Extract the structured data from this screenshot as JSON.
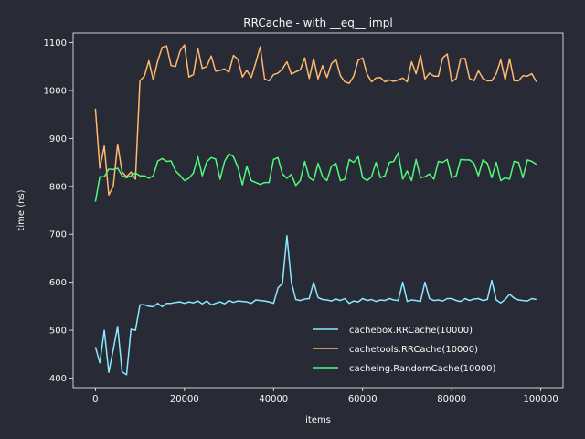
{
  "chart_data": {
    "type": "line",
    "title": "RRCache - with __eq__ impl",
    "xlabel": "items",
    "ylabel": "time (ns)",
    "xlim": [
      -5000,
      105000
    ],
    "ylim": [
      380,
      1120
    ],
    "xticks": [
      0,
      20000,
      40000,
      60000,
      80000,
      100000
    ],
    "yticks": [
      400,
      500,
      600,
      700,
      800,
      900,
      1000,
      1100
    ],
    "legend_position": "lower right",
    "grid": false,
    "colors": {
      "background": "#282a36",
      "axis": "#f8f8f2"
    },
    "x": [
      0,
      1000,
      2000,
      3000,
      4000,
      5000,
      6000,
      7000,
      8000,
      9000,
      10000,
      11000,
      12000,
      13000,
      14000,
      15000,
      16000,
      17000,
      18000,
      19000,
      20000,
      21000,
      22000,
      23000,
      24000,
      25000,
      26000,
      27000,
      28000,
      29000,
      30000,
      31000,
      32000,
      33000,
      34000,
      35000,
      36000,
      37000,
      38000,
      39000,
      40000,
      41000,
      42000,
      43000,
      44000,
      45000,
      46000,
      47000,
      48000,
      49000,
      50000,
      51000,
      52000,
      53000,
      54000,
      55000,
      56000,
      57000,
      58000,
      59000,
      60000,
      61000,
      62000,
      63000,
      64000,
      65000,
      66000,
      67000,
      68000,
      69000,
      70000,
      71000,
      72000,
      73000,
      74000,
      75000,
      76000,
      77000,
      78000,
      79000,
      80000,
      81000,
      82000,
      83000,
      84000,
      85000,
      86000,
      87000,
      88000,
      89000,
      90000,
      91000,
      92000,
      93000,
      94000,
      95000,
      96000,
      97000,
      98000,
      99000
    ],
    "series": [
      {
        "name": "cachebox.RRCache(10000)",
        "color": "#8be9fd",
        "values": [
          465,
          432,
          500,
          412,
          460,
          508,
          413,
          407,
          502,
          500,
          553,
          553,
          550,
          549,
          556,
          549,
          556,
          556,
          558,
          559,
          556,
          559,
          557,
          561,
          555,
          561,
          553,
          556,
          559,
          555,
          562,
          558,
          561,
          560,
          559,
          556,
          563,
          562,
          561,
          559,
          556,
          588,
          598,
          697,
          600,
          564,
          562,
          565,
          566,
          600,
          568,
          564,
          563,
          561,
          565,
          562,
          566,
          556,
          561,
          559,
          566,
          562,
          564,
          560,
          563,
          562,
          566,
          563,
          562,
          600,
          560,
          563,
          562,
          560,
          600,
          566,
          562,
          563,
          561,
          566,
          566,
          562,
          560,
          566,
          562,
          565,
          566,
          562,
          564,
          604,
          563,
          557,
          564,
          575,
          567,
          563,
          562,
          561,
          566,
          564
        ]
      },
      {
        "name": "cachetools.RRCache(10000)",
        "color": "#ffb86c",
        "values": [
          962,
          838,
          884,
          782,
          800,
          888,
          830,
          820,
          830,
          815,
          1020,
          1030,
          1062,
          1022,
          1062,
          1090,
          1093,
          1052,
          1050,
          1082,
          1095,
          1028,
          1033,
          1088,
          1046,
          1050,
          1072,
          1040,
          1042,
          1045,
          1038,
          1073,
          1065,
          1028,
          1042,
          1027,
          1058,
          1091,
          1024,
          1020,
          1033,
          1036,
          1045,
          1060,
          1034,
          1039,
          1043,
          1068,
          1025,
          1066,
          1024,
          1052,
          1027,
          1056,
          1065,
          1031,
          1018,
          1015,
          1030,
          1063,
          1068,
          1034,
          1018,
          1026,
          1027,
          1018,
          1022,
          1019,
          1022,
          1026,
          1018,
          1060,
          1035,
          1073,
          1024,
          1036,
          1030,
          1030,
          1068,
          1076,
          1018,
          1025,
          1066,
          1067,
          1025,
          1020,
          1041,
          1025,
          1020,
          1020,
          1035,
          1064,
          1022,
          1066,
          1020,
          1020,
          1031,
          1030,
          1035,
          1018
        ]
      },
      {
        "name": "cacheing.RandomCache(10000)",
        "color": "#50fa7b",
        "values": [
          768,
          820,
          820,
          836,
          835,
          838,
          822,
          818,
          822,
          828,
          822,
          822,
          817,
          822,
          853,
          858,
          852,
          853,
          832,
          823,
          812,
          817,
          828,
          862,
          822,
          851,
          860,
          857,
          815,
          852,
          868,
          862,
          840,
          803,
          842,
          812,
          808,
          804,
          808,
          808,
          856,
          860,
          826,
          817,
          825,
          802,
          812,
          852,
          818,
          812,
          848,
          820,
          812,
          842,
          848,
          812,
          815,
          856,
          850,
          862,
          818,
          812,
          820,
          850,
          818,
          822,
          850,
          852,
          870,
          815,
          832,
          812,
          856,
          818,
          820,
          826,
          815,
          852,
          850,
          856,
          818,
          822,
          856,
          855,
          855,
          848,
          822,
          855,
          848,
          818,
          850,
          812,
          818,
          815,
          852,
          850,
          818,
          855,
          852,
          846
        ]
      }
    ]
  }
}
